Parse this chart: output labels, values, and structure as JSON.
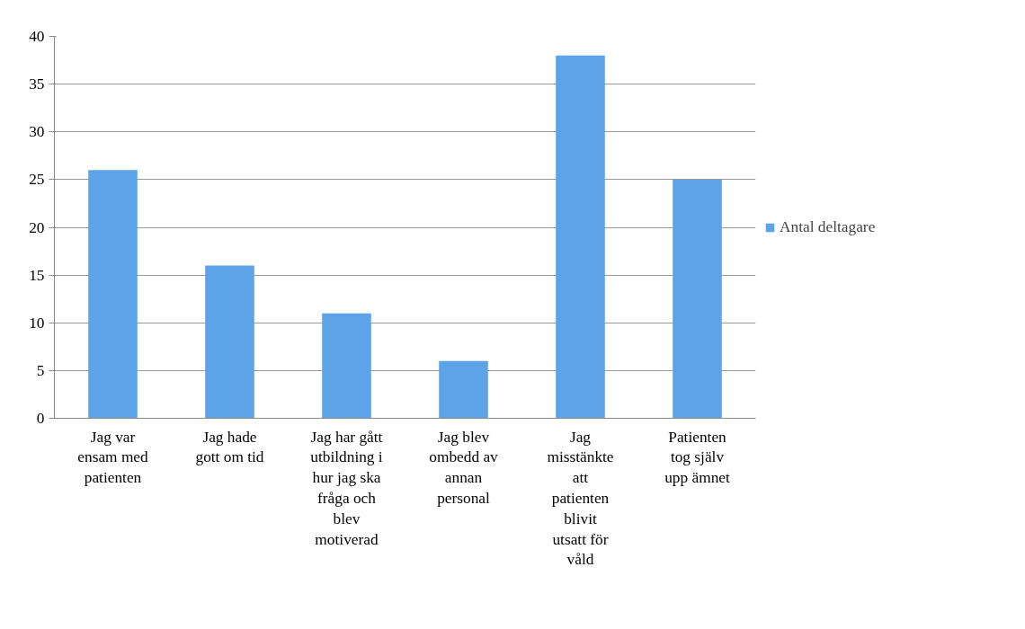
{
  "chart_data": {
    "type": "bar",
    "categories": [
      "Jag var ensam med patienten",
      "Jag hade gott om tid",
      "Jag har gått utbildning i hur jag ska fråga och blev motiverad",
      "Jag blev ombedd av annan personal",
      "Jag misstänkte att patienten blivit utsatt för våld",
      "Patienten tog själv upp ämnet"
    ],
    "series": [
      {
        "name": "Antal deltagare",
        "color": "#5da3e8",
        "values": [
          26,
          16,
          11,
          6,
          38,
          25
        ]
      }
    ],
    "ylim": [
      0,
      40
    ],
    "yticks": [
      0,
      5,
      10,
      15,
      20,
      25,
      30,
      35,
      40
    ],
    "grid": "y",
    "legend": "right"
  }
}
